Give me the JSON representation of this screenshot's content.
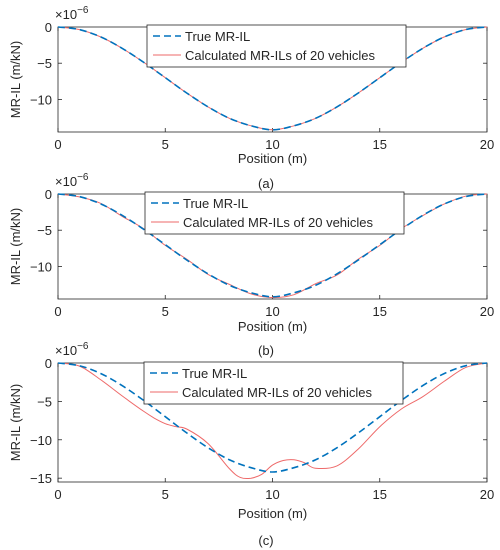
{
  "chart_data": [
    {
      "type": "line",
      "panel_label": "(a)",
      "xlabel": "Position (m)",
      "ylabel": "MR-IL (m/kN)",
      "exponent_label": "×10",
      "exponent_power": "−6",
      "xlim": [
        0,
        20
      ],
      "ylim": [
        -14.5,
        0
      ],
      "xticks": [
        "0",
        "5",
        "10",
        "15",
        "20"
      ],
      "yticks": [
        {
          "v": 0,
          "label": "0"
        },
        {
          "v": -5,
          "label": "−5"
        },
        {
          "v": -10,
          "label": "−10"
        }
      ],
      "legend_position": "top-center",
      "series": [
        {
          "name": "True MR-IL",
          "color": "#0072BD",
          "style": "dashed",
          "x": [
            0,
            1,
            2,
            3,
            4,
            5,
            6,
            7,
            8,
            9,
            10,
            11,
            12,
            13,
            14,
            15,
            16,
            17,
            18,
            19,
            20
          ],
          "y": [
            0,
            -0.36,
            -1.38,
            -2.96,
            -4.89,
            -7.0,
            -9.11,
            -11.04,
            -12.62,
            -13.64,
            -14.2,
            -13.64,
            -12.62,
            -11.04,
            -9.11,
            -7.0,
            -4.89,
            -2.96,
            -1.38,
            -0.36,
            0
          ]
        },
        {
          "name": "Calculated MR-ILs of 20 vehicles",
          "color": "#EE6A6A",
          "style": "solid",
          "x": [
            0,
            1,
            2,
            3,
            4,
            5,
            6,
            7,
            8,
            9,
            10,
            11,
            12,
            13,
            14,
            15,
            16,
            17,
            18,
            19,
            20
          ],
          "y": [
            0,
            -0.36,
            -1.38,
            -2.96,
            -4.89,
            -7.0,
            -9.11,
            -11.04,
            -12.62,
            -13.64,
            -14.2,
            -13.64,
            -12.62,
            -11.04,
            -9.11,
            -7.0,
            -4.89,
            -2.96,
            -1.38,
            -0.36,
            0
          ]
        }
      ]
    },
    {
      "type": "line",
      "panel_label": "(b)",
      "xlabel": "Position (m)",
      "ylabel": "MR-IL (m/kN)",
      "exponent_label": "×10",
      "exponent_power": "−6",
      "xlim": [
        0,
        20
      ],
      "ylim": [
        -14.5,
        0
      ],
      "xticks": [
        "0",
        "5",
        "10",
        "15",
        "20"
      ],
      "yticks": [
        {
          "v": 0,
          "label": "0"
        },
        {
          "v": -5,
          "label": "−5"
        },
        {
          "v": -10,
          "label": "−10"
        }
      ],
      "legend_position": "top-center",
      "series": [
        {
          "name": "True MR-IL",
          "color": "#0072BD",
          "style": "dashed",
          "x": [
            0,
            1,
            2,
            3,
            4,
            5,
            6,
            7,
            8,
            9,
            10,
            11,
            12,
            13,
            14,
            15,
            16,
            17,
            18,
            19,
            20
          ],
          "y": [
            0,
            -0.36,
            -1.38,
            -2.96,
            -4.89,
            -7.0,
            -9.11,
            -11.04,
            -12.62,
            -13.64,
            -14.2,
            -13.64,
            -12.62,
            -11.04,
            -9.11,
            -7.0,
            -4.89,
            -2.96,
            -1.38,
            -0.36,
            0
          ]
        },
        {
          "name": "Calculated MR-ILs of 20 vehicles",
          "color": "#EE6A6A",
          "style": "solid",
          "x": [
            0,
            1,
            2,
            3,
            4,
            5,
            6,
            7,
            8,
            9,
            10,
            11,
            12,
            13,
            14,
            15,
            16,
            17,
            18,
            19,
            20
          ],
          "y": [
            0,
            -0.4,
            -1.3,
            -3.1,
            -4.8,
            -7.1,
            -9.0,
            -11.1,
            -12.5,
            -13.8,
            -14.3,
            -13.9,
            -12.4,
            -11.2,
            -9.0,
            -7.1,
            -4.8,
            -3.0,
            -1.4,
            -0.3,
            0
          ]
        }
      ]
    },
    {
      "type": "line",
      "panel_label": "(c)",
      "xlabel": "Position (m)",
      "ylabel": "MR-IL (m/kN)",
      "exponent_label": "×10",
      "exponent_power": "−6",
      "xlim": [
        0,
        20
      ],
      "ylim": [
        -15.5,
        0
      ],
      "xticks": [
        "0",
        "5",
        "10",
        "15",
        "20"
      ],
      "yticks": [
        {
          "v": 0,
          "label": "0"
        },
        {
          "v": -5,
          "label": "−5"
        },
        {
          "v": -10,
          "label": "−10"
        },
        {
          "v": -15,
          "label": "−15"
        }
      ],
      "legend_position": "top-center",
      "series": [
        {
          "name": "True MR-IL",
          "color": "#0072BD",
          "style": "dashed",
          "x": [
            0,
            1,
            2,
            3,
            4,
            5,
            6,
            7,
            8,
            9,
            10,
            11,
            12,
            13,
            14,
            15,
            16,
            17,
            18,
            19,
            20
          ],
          "y": [
            0,
            -0.36,
            -1.38,
            -2.96,
            -4.89,
            -7.0,
            -9.11,
            -11.04,
            -12.62,
            -13.64,
            -14.2,
            -13.64,
            -12.62,
            -11.04,
            -9.11,
            -7.0,
            -4.89,
            -2.96,
            -1.38,
            -0.36,
            0
          ]
        },
        {
          "name": "Calculated MR-ILs of 20 vehicles",
          "color": "#EE6A6A",
          "style": "solid",
          "x": [
            0,
            1,
            2,
            3,
            4,
            4.5,
            5,
            5.5,
            6,
            7,
            8,
            8.5,
            9,
            9.5,
            10,
            10.5,
            11,
            11.5,
            12,
            13,
            14,
            15,
            16,
            17,
            18,
            19,
            20
          ],
          "y": [
            0,
            -0.4,
            -2.2,
            -4.3,
            -6.3,
            -7.2,
            -7.9,
            -8.3,
            -8.6,
            -10.5,
            -13.8,
            -14.9,
            -15.0,
            -14.5,
            -13.3,
            -12.7,
            -12.6,
            -13.0,
            -13.7,
            -13.4,
            -11.2,
            -8.3,
            -6.0,
            -4.4,
            -2.4,
            -0.6,
            0
          ]
        }
      ]
    }
  ]
}
